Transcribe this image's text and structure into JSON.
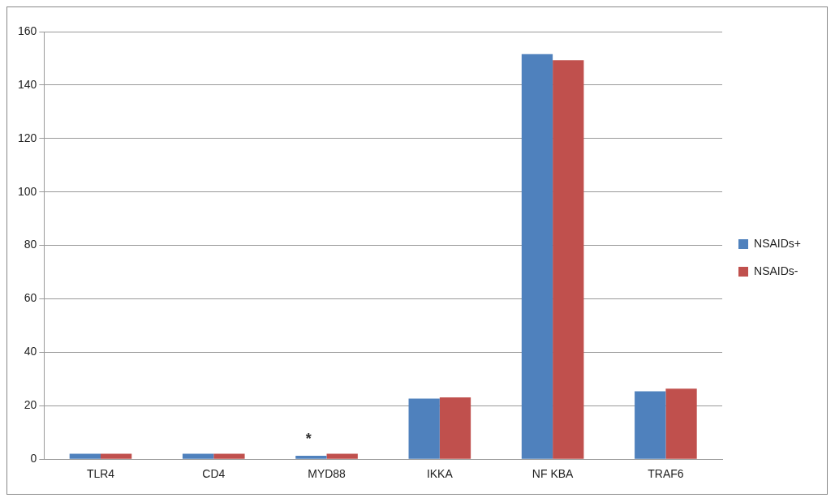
{
  "chart_data": {
    "type": "bar",
    "categories": [
      "TLR4",
      "CD4",
      "MYD88",
      "IKKA",
      "NF KBA",
      "TRAF6"
    ],
    "series": [
      {
        "name": "NSAIDs+",
        "color": "#4f81bd",
        "values": [
          2,
          2,
          1.3,
          22.7,
          151.6,
          25.4
        ]
      },
      {
        "name": "NSAIDs-",
        "color": "#c0504d",
        "values": [
          2,
          2,
          2,
          23.1,
          149.3,
          26.4
        ]
      }
    ],
    "ylim": [
      0,
      160
    ],
    "yticks": [
      0,
      20,
      40,
      60,
      80,
      100,
      120,
      140,
      160
    ],
    "grid": "y",
    "legend": "right",
    "annotations": [
      {
        "text": "*",
        "x": "MYD88",
        "y": 1.3
      }
    ]
  }
}
